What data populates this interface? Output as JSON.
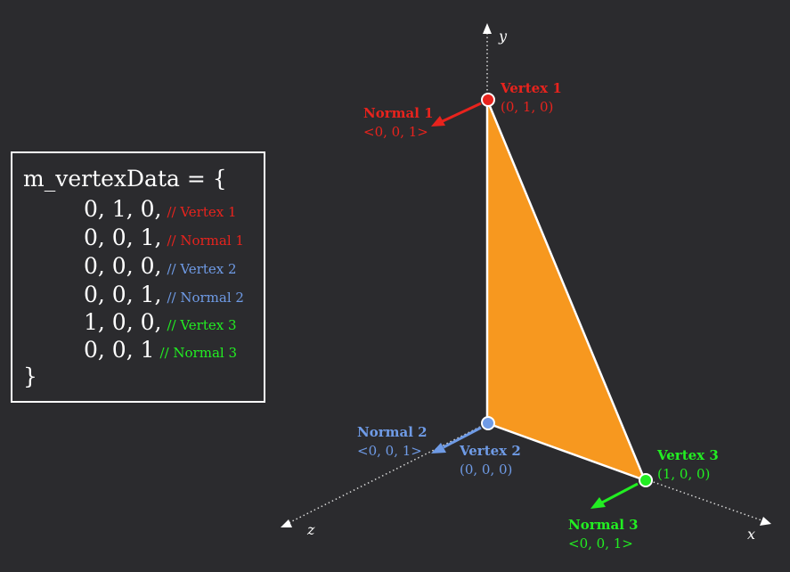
{
  "code": {
    "open": "m_vertexData = {",
    "close": "}",
    "lines": [
      {
        "values": "0, 1, 0,",
        "comment": "// Vertex 1",
        "color": "#e8231d"
      },
      {
        "values": "0, 0, 1,",
        "comment": "// Normal 1",
        "color": "#e8231d"
      },
      {
        "values": "0, 0, 0,",
        "comment": "// Vertex 2",
        "color": "#6f9be6"
      },
      {
        "values": "0, 0, 1,",
        "comment": "// Normal 2",
        "color": "#6f9be6"
      },
      {
        "values": "1, 0, 0,",
        "comment": "// Vertex 3",
        "color": "#22ee22"
      },
      {
        "values": "0, 0, 1",
        "comment": "// Normal 3",
        "color": "#22ee22"
      }
    ]
  },
  "axes": {
    "x": "x",
    "y": "y",
    "z": "z"
  },
  "triangle_color": "#f7981f",
  "vertices": [
    {
      "title": "Vertex 1",
      "coords": "(0, 1, 0)",
      "color": "#e8231d"
    },
    {
      "title": "Vertex 2",
      "coords": "(0, 0, 0)",
      "color": "#6f9be6"
    },
    {
      "title": "Vertex 3",
      "coords": "(1, 0, 0)",
      "color": "#22ee22"
    }
  ],
  "normals": [
    {
      "title": "Normal 1",
      "vector": "<0, 0, 1>",
      "color": "#e8231d"
    },
    {
      "title": "Normal 2",
      "vector": "<0, 0, 1>",
      "color": "#6f9be6"
    },
    {
      "title": "Normal 3",
      "vector": "<0, 0, 1>",
      "color": "#22ee22"
    }
  ]
}
